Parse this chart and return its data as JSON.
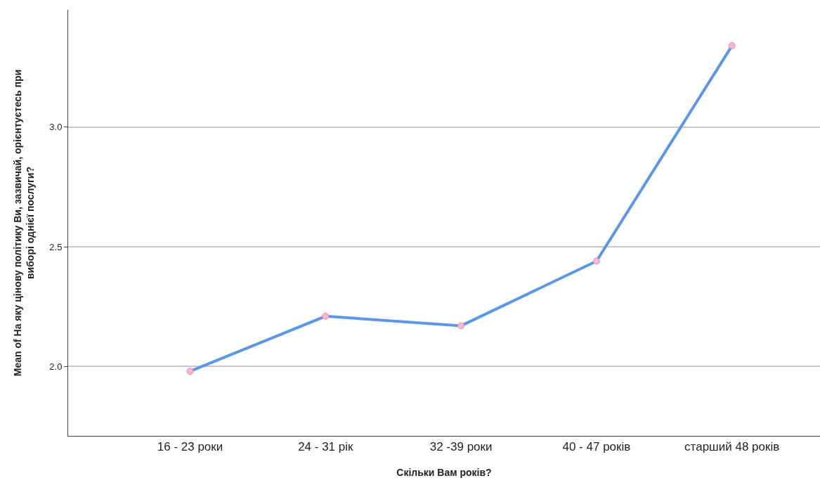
{
  "chart_data": {
    "type": "line",
    "xlabel": "Скільки Вам років?",
    "ylabel": "Mean of На яку цінову політику Ви, зазвичай, орієнтуєтесь при\nвиборі однієї послуги?",
    "categories": [
      "16 - 23 роки",
      "24 - 31 рік",
      "32 -39 роки",
      "40 - 47 років",
      "старший 48 років"
    ],
    "series": [
      {
        "color": "#5b97e6",
        "colors": [
          "#f6b8d2",
          "#f6b8d2",
          "#f6b8d2",
          "#f6b8d2",
          "#f6b8d2"
        ],
        "values": [
          1.98,
          2.21,
          2.17,
          2.44,
          3.34
        ]
      }
    ],
    "ylim": [
      1.71,
      3.49
    ],
    "yticks": [
      {
        "value": 2.0,
        "label": "2.0"
      },
      {
        "value": 2.5,
        "label": "2.5"
      },
      {
        "value": 3.0,
        "label": "3.0"
      }
    ],
    "grid": "y",
    "marker": "circle",
    "line_style": "solid"
  }
}
